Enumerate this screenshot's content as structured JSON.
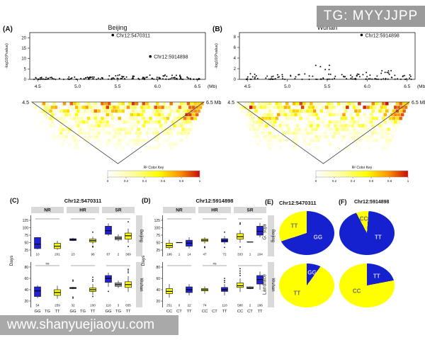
{
  "watermark_top": {
    "text": "TG: MYYJJPP"
  },
  "watermark_bottom": {
    "text": "www.shanyuejiaoyu.com"
  },
  "chart_data": {
    "manhattan": [
      {
        "id": "A",
        "type": "scatter",
        "panel_label": "(A)",
        "title": "Beijing",
        "ylabel": "-log10(Pvalue)",
        "xunit": "(Mb)",
        "xlim": [
          4.4,
          6.6
        ],
        "ylim": [
          0,
          22.5
        ],
        "yticks": [
          0,
          5,
          10,
          15,
          20
        ],
        "xticks": [
          4.5,
          5.0,
          5.5,
          6.0,
          6.5
        ],
        "highlights": [
          {
            "name": "Chr12:5470311",
            "x": 5.44,
            "y": 21.3
          },
          {
            "name": "Chr12:5914898",
            "x": 5.91,
            "y": 11.0
          }
        ],
        "bands": [
          {
            "x0": 4.45,
            "x1": 4.78,
            "n": 26,
            "ymax": 1.0
          },
          {
            "x0": 4.82,
            "x1": 5.33,
            "n": 34,
            "ymax": 1.1
          },
          {
            "x0": 5.35,
            "x1": 5.78,
            "n": 30,
            "ymax": 2.3
          },
          {
            "x0": 5.78,
            "x1": 6.33,
            "n": 46,
            "ymax": 2.1
          },
          {
            "x0": 6.35,
            "x1": 6.55,
            "n": 12,
            "ymax": 1.1
          }
        ],
        "seed": 7
      },
      {
        "id": "B",
        "type": "scatter",
        "panel_label": "(B)",
        "title": "Wuhan",
        "ylabel": "-log10(Pvalue)",
        "xunit": "(Mb)",
        "xlim": [
          4.4,
          6.6
        ],
        "ylim": [
          0,
          8.8
        ],
        "yticks": [
          0,
          2,
          4,
          6,
          8
        ],
        "xticks": [
          4.5,
          5.0,
          5.5,
          6.0,
          6.5
        ],
        "highlights": [
          {
            "name": "Chr12:5914898",
            "x": 5.93,
            "y": 8.35
          }
        ],
        "bands": [
          {
            "x0": 4.48,
            "x1": 4.68,
            "n": 16,
            "ymax": 1.3
          },
          {
            "x0": 4.72,
            "x1": 5.32,
            "n": 30,
            "ymax": 1.1
          },
          {
            "x0": 5.35,
            "x1": 5.55,
            "n": 18,
            "ymax": 3.6
          },
          {
            "x0": 5.56,
            "x1": 5.8,
            "n": 10,
            "ymax": 0.9
          },
          {
            "x0": 5.8,
            "x1": 6.32,
            "n": 44,
            "ymax": 1.8
          },
          {
            "x0": 6.32,
            "x1": 6.56,
            "n": 14,
            "ymax": 0.9
          }
        ],
        "seed": 13
      }
    ],
    "ld": [
      {
        "id": "ldA",
        "type": "heatmap",
        "left_label": "4.5",
        "right_label": "6.5 Mb",
        "key_title": "R² Color Key",
        "key_ticks": [
          "0",
          "0.2",
          "0.4",
          "0.6",
          "0.8",
          "1"
        ],
        "seed": 21
      },
      {
        "id": "ldB",
        "type": "heatmap",
        "left_label": "4.5",
        "right_label": "6.5 Mb",
        "key_title": "R² Color Key",
        "key_ticks": [
          "0",
          "0.2",
          "0.4",
          "0.6",
          "0.8",
          "1"
        ],
        "seed": 22
      }
    ],
    "boxplots": [
      {
        "id": "C",
        "type": "boxplot",
        "panel_label": "(C)",
        "title": "Chr12:5470311",
        "ylabel": "Days",
        "facets": [
          "NR",
          "HR",
          "SR"
        ],
        "genotypes": [
          "GG",
          "TG",
          "TT"
        ],
        "colors": {
          "GG": "#2020d8",
          "TG": "#a8a8a8",
          "TT": "#ffff00"
        },
        "rows": [
          {
            "name": "Beijing",
            "ylim": [
              25,
              125
            ],
            "yticks": [
              25,
              50,
              75,
              100,
              125
            ],
            "sig": [
              "",
              "",
              ""
            ],
            "cells": [
              {
                "facet": "NR",
                "g": "GG",
                "q1": 30,
                "med": 45,
                "q3": 67,
                "lo": 27,
                "hi": 69,
                "n": "10"
              },
              {
                "facet": "NR",
                "g": "TT",
                "q1": 30,
                "med": 38,
                "q3": 48,
                "lo": 26,
                "hi": 56,
                "n": "201"
              },
              {
                "facet": "HR",
                "g": "GG",
                "q1": 57,
                "med": 60,
                "q3": 63,
                "lo": 55,
                "hi": 66,
                "n": "23"
              },
              {
                "facet": "HR",
                "g": "TT",
                "q1": 52,
                "med": 57,
                "q3": 62,
                "lo": 44,
                "hi": 70,
                "n": "96",
                "out": [
                  85,
                  38,
                  35
                ]
              },
              {
                "facet": "SR",
                "g": "GG",
                "q1": 78,
                "med": 90,
                "q3": 105,
                "lo": 73,
                "hi": 115,
                "n": "67"
              },
              {
                "facet": "SR",
                "g": "TG",
                "q1": 60,
                "med": 65,
                "q3": 70,
                "lo": 55,
                "hi": 78,
                "n": "2"
              },
              {
                "facet": "SR",
                "g": "TT",
                "q1": 62,
                "med": 73,
                "q3": 82,
                "lo": 50,
                "hi": 97,
                "n": "369",
                "out": [
                  120,
                  37
                ]
              }
            ]
          },
          {
            "name": "Wuhan",
            "ylim": [
              20,
              80
            ],
            "yticks": [
              20,
              40,
              60,
              80
            ],
            "sig": [
              "ns",
              "",
              ""
            ],
            "cells": [
              {
                "facet": "NR",
                "g": "GG",
                "q1": 28,
                "med": 38,
                "q3": 45,
                "lo": 25,
                "hi": 48,
                "n": "54"
              },
              {
                "facet": "NR",
                "g": "TT",
                "q1": 30,
                "med": 35,
                "q3": 40,
                "lo": 24,
                "hi": 47,
                "n": "259"
              },
              {
                "facet": "HR",
                "g": "GG",
                "q1": 42,
                "med": 43,
                "q3": 44,
                "lo": 41,
                "hi": 45,
                "n": "32",
                "out": [
                  55,
                  57,
                  27,
                  25
                ]
              },
              {
                "facet": "HR",
                "g": "TT",
                "q1": 37,
                "med": 40,
                "q3": 43,
                "lo": 30,
                "hi": 50,
                "n": "100",
                "out": [
                  55,
                  58,
                  62,
                  28
                ]
              },
              {
                "facet": "SR",
                "g": "GG",
                "q1": 53,
                "med": 60,
                "q3": 65,
                "lo": 45,
                "hi": 70,
                "n": "118",
                "out": [
                  37
                ]
              },
              {
                "facet": "SR",
                "g": "TG",
                "q1": 46,
                "med": 49,
                "q3": 52,
                "lo": 43,
                "hi": 56,
                "n": "3"
              },
              {
                "facet": "SR",
                "g": "TT",
                "q1": 44,
                "med": 49,
                "q3": 54,
                "lo": 36,
                "hi": 64,
                "n": "655",
                "out": [
                  70,
                  73,
                  76
                ]
              }
            ]
          }
        ]
      },
      {
        "id": "D",
        "type": "boxplot",
        "panel_label": "(D)",
        "title": "Chr12:5914898",
        "ylabel": "Days",
        "facets": [
          "NR",
          "HR",
          "SR"
        ],
        "genotypes": [
          "CC",
          "CT",
          "TT"
        ],
        "colors": {
          "CC": "#ffff00",
          "CT": "#a8a8a8",
          "TT": "#2020d8"
        },
        "rows": [
          {
            "name": "Beijing",
            "ylim": [
              25,
              125
            ],
            "yticks": [
              25,
              50,
              75,
              100,
              125
            ],
            "sig": [
              "",
              "",
              ""
            ],
            "cells": [
              {
                "facet": "NR",
                "g": "CC",
                "q1": 33,
                "med": 40,
                "q3": 48,
                "lo": 28,
                "hi": 60,
                "n": "196"
              },
              {
                "facet": "NR",
                "g": "CT",
                "q1": 50,
                "med": 50,
                "q3": 50,
                "lo": 50,
                "hi": 50,
                "n": "1"
              },
              {
                "facet": "NR",
                "g": "TT",
                "q1": 38,
                "med": 48,
                "q3": 58,
                "lo": 30,
                "hi": 68,
                "n": "14"
              },
              {
                "facet": "HR",
                "g": "CC",
                "q1": 54,
                "med": 58,
                "q3": 62,
                "lo": 47,
                "hi": 68,
                "n": "47",
                "out": [
                  36,
                  33
                ]
              },
              {
                "facet": "HR",
                "g": "TT",
                "q1": 52,
                "med": 57,
                "q3": 63,
                "lo": 45,
                "hi": 72,
                "n": "72",
                "out": [
                  85,
                  34
                ]
              },
              {
                "facet": "SR",
                "g": "CC",
                "q1": 62,
                "med": 70,
                "q3": 80,
                "lo": 50,
                "hi": 92,
                "n": "333",
                "out": [
                  112,
                  116,
                  35
                ]
              },
              {
                "facet": "SR",
                "g": "CT",
                "q1": 52,
                "med": 52,
                "q3": 52,
                "lo": 52,
                "hi": 52,
                "n": "1"
              },
              {
                "facet": "SR",
                "g": "TT",
                "q1": 75,
                "med": 88,
                "q3": 105,
                "lo": 68,
                "hi": 116,
                "n": "104"
              }
            ]
          },
          {
            "name": "Wuhan",
            "ylim": [
              20,
              80
            ],
            "yticks": [
              20,
              40,
              60,
              80
            ],
            "sig": [
              "",
              "ns",
              ""
            ],
            "cells": [
              {
                "facet": "NR",
                "g": "CC",
                "q1": 33,
                "med": 37,
                "q3": 42,
                "lo": 26,
                "hi": 50,
                "n": "251"
              },
              {
                "facet": "NR",
                "g": "CT",
                "n": "0"
              },
              {
                "facet": "NR",
                "g": "TT",
                "q1": 35,
                "med": 40,
                "q3": 45,
                "lo": 30,
                "hi": 50,
                "n": "22"
              },
              {
                "facet": "HR",
                "g": "CC",
                "q1": 38,
                "med": 40,
                "q3": 42,
                "lo": 33,
                "hi": 46,
                "n": "74"
              },
              {
                "facet": "HR",
                "g": "TT",
                "q1": 37,
                "med": 40,
                "q3": 44,
                "lo": 30,
                "hi": 50,
                "n": "118",
                "out": [
                  53,
                  56,
                  60
                ]
              },
              {
                "facet": "SR",
                "g": "CC",
                "q1": 44,
                "med": 47,
                "q3": 52,
                "lo": 36,
                "hi": 60,
                "n": "586",
                "out": [
                  65,
                  69,
                  73,
                  77
                ]
              },
              {
                "facet": "SR",
                "g": "CT",
                "q1": 42,
                "med": 43,
                "q3": 45,
                "lo": 41,
                "hi": 46,
                "n": "2"
              },
              {
                "facet": "SR",
                "g": "TT",
                "q1": 50,
                "med": 58,
                "q3": 65,
                "lo": 40,
                "hi": 72,
                "n": "186"
              }
            ]
          }
        ]
      }
    ],
    "pies": [
      {
        "id": "E",
        "type": "pie",
        "panel_label": "(E)",
        "title": "Chr12:5470311",
        "rows": [
          {
            "row_label": "G. soja",
            "italic": true,
            "start_deg": 0,
            "slices": [
              {
                "label": "GG",
                "pct": 70,
                "color": "#1520cf",
                "label_deg": 115,
                "label_r": 0.45,
                "text_color": "#c9d0f5"
              },
              {
                "label": "TT",
                "pct": 30,
                "color": "#ffff00",
                "label_deg": 305,
                "label_r": 0.55,
                "text_color": "#6b6b6b"
              }
            ]
          },
          {
            "row_label": "Landrace",
            "italic": false,
            "start_deg": 0,
            "slices": [
              {
                "label": "GG",
                "pct": 10,
                "color": "#1520cf",
                "label_deg": 18,
                "label_r": 0.62,
                "text_color": "#c9d0f5"
              },
              {
                "label": "TT",
                "pct": 90,
                "color": "#ffff00",
                "label_deg": 225,
                "label_r": 0.5,
                "text_color": "#6b6b6b"
              }
            ]
          }
        ]
      },
      {
        "id": "F",
        "type": "pie",
        "panel_label": "(F)",
        "title": "Chr12:5914898",
        "rows": [
          {
            "row_label": "",
            "italic": false,
            "start_deg": -28,
            "slices": [
              {
                "label": "CC",
                "pct": 9,
                "color": "#ffff00",
                "label_deg": -10,
                "label_r": 0.66,
                "text_color": "#6b6b6b"
              },
              {
                "label": "TT",
                "pct": 91,
                "color": "#1520cf",
                "label_deg": 115,
                "label_r": 0.45,
                "text_color": "#c9d0f5"
              }
            ]
          },
          {
            "row_label": "",
            "italic": false,
            "start_deg": 0,
            "slices": [
              {
                "label": "TT",
                "pct": 22,
                "color": "#1520cf",
                "label_deg": 40,
                "label_r": 0.55,
                "text_color": "#c9d0f5"
              },
              {
                "label": "CC",
                "pct": 78,
                "color": "#ffff00",
                "label_deg": 235,
                "label_r": 0.45,
                "text_color": "#6b6b6b"
              }
            ]
          }
        ]
      }
    ]
  }
}
